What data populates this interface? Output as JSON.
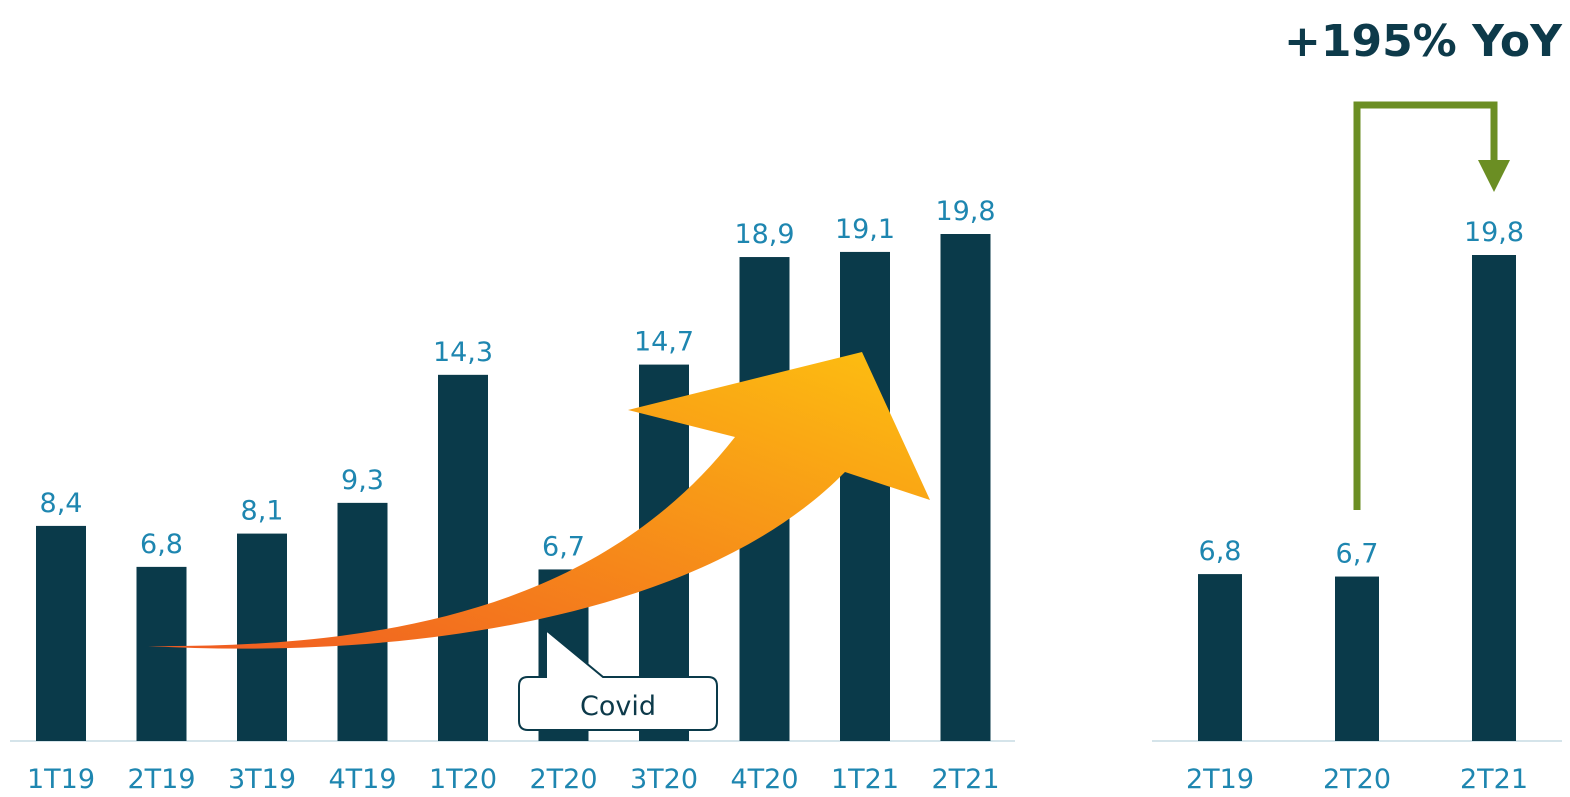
{
  "colors": {
    "bar": "#0A3A4A",
    "label": "#1E86B0",
    "axis": "#D5E4EA",
    "yoy_text": "#0D3A4A",
    "yoy_arrow": "#6B8E23",
    "trend_arrow_start": "#F05A22",
    "trend_arrow_end": "#FDC010"
  },
  "chart_data": [
    {
      "type": "bar",
      "categories": [
        "1T19",
        "2T19",
        "3T19",
        "4T19",
        "1T20",
        "2T20",
        "3T20",
        "4T20",
        "1T21",
        "2T21"
      ],
      "values": [
        8.4,
        6.8,
        8.1,
        9.3,
        14.3,
        6.7,
        14.7,
        18.9,
        19.1,
        19.8
      ],
      "value_labels": [
        "8,4",
        "6,8",
        "8,1",
        "9,3",
        "14,3",
        "6,7",
        "14,7",
        "18,9",
        "19,1",
        "19,8"
      ],
      "ylim": [
        0,
        19.8
      ],
      "annotations": {
        "callout": {
          "text": "Covid",
          "category": "2T20"
        },
        "trend_arrow": {
          "from": "1T19",
          "to": "2T21",
          "icon": "orange-curved-arrow-icon"
        }
      },
      "grid": false,
      "legend": "none"
    },
    {
      "type": "bar",
      "categories": [
        "2T19",
        "2T20",
        "2T21"
      ],
      "values": [
        6.8,
        6.7,
        19.8
      ],
      "value_labels": [
        "6,8",
        "6,7",
        "19,8"
      ],
      "ylim": [
        0,
        19.8
      ],
      "annotations": {
        "growth": {
          "text": "+195% YoY",
          "from": "2T20",
          "to": "2T21",
          "icon": "green-bracket-arrow-icon"
        }
      },
      "grid": false,
      "legend": "none"
    }
  ]
}
